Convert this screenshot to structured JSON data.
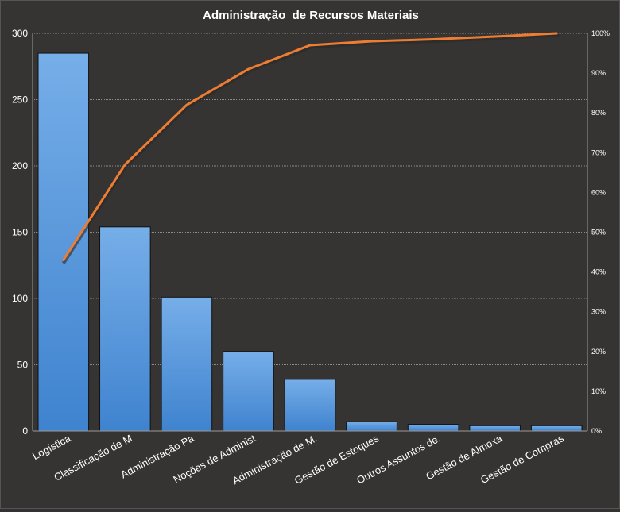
{
  "chart_data": {
    "type": "pareto",
    "title": "Administração  de Recursos Materiais",
    "categories": [
      "Logística",
      "Classificação de M",
      "Administração Pa",
      "Noções de Administ",
      "Administração de M.",
      "Gestão de Estoques",
      "Outros Assuntos de.",
      "Gestão de Almoxa",
      "Gestão de Compras"
    ],
    "series": [
      {
        "type": "bar",
        "axis": "left",
        "values": [
          285,
          154,
          101,
          60,
          39,
          7,
          5,
          4,
          4
        ]
      },
      {
        "type": "line",
        "axis": "right",
        "values": [
          43,
          67,
          82,
          91,
          97,
          98,
          98.5,
          99.2,
          100
        ]
      }
    ],
    "y_left": {
      "min": 0,
      "max": 300,
      "ticks": [
        "0",
        "50",
        "100",
        "150",
        "200",
        "250",
        "300"
      ]
    },
    "y_right": {
      "min": 0,
      "max": 100,
      "ticks": [
        "0%",
        "10%",
        "20%",
        "30%",
        "40%",
        "50%",
        "60%",
        "70%",
        "80%",
        "90%",
        "100%"
      ]
    },
    "grid": true,
    "legend": "none",
    "colors": {
      "bar_top": "#76aee8",
      "bar_bottom": "#3f83cf",
      "line": "#ee7d31",
      "text": "#ffffff",
      "grid": "#8a8a8a"
    }
  }
}
